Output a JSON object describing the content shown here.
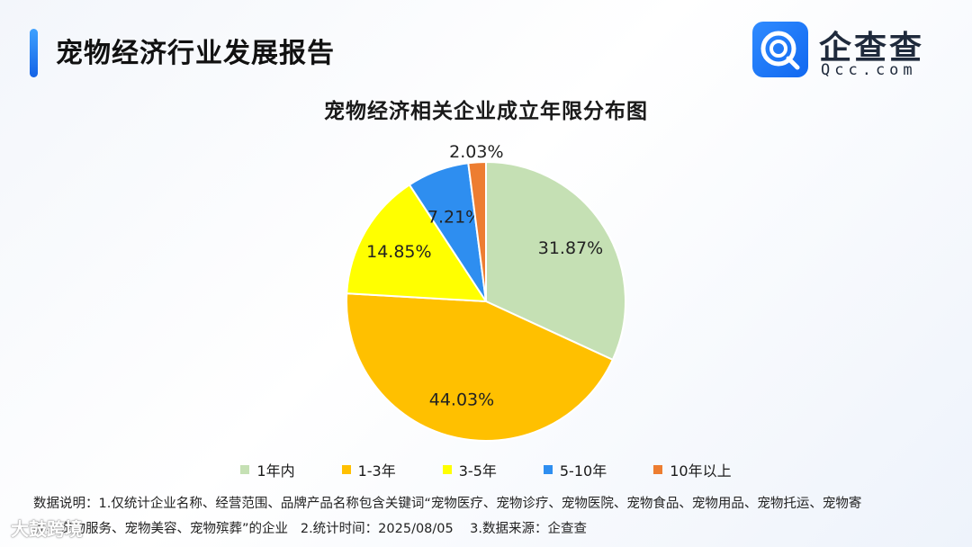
{
  "header": {
    "report_title": "宠物经济行业发展报告",
    "logo_cn": "企查查",
    "logo_en": "Qcc.com",
    "brand_color": "#1a73f0"
  },
  "footer": {
    "note_line1": "数据说明：1.仅统计企业名称、经营范围、品牌产品名称包含关键词“宠物医疗、宠物诊疗、宠物医院、宠物食品、宠物用品、宠物托运、宠物寄",
    "note_line2": "养、宠物服务、宠物美容、宠物殡葬”的企业   2.统计时间：2025/08/05    3.数据来源：企查查",
    "watermark": "大鼓跨境"
  },
  "chart_data": {
    "type": "pie",
    "title": "宠物经济相关企业成立年限分布图",
    "categories": [
      "1年内",
      "1-3年",
      "3-5年",
      "5-10年",
      "10年以上"
    ],
    "values": [
      31.87,
      44.03,
      14.85,
      7.21,
      2.03
    ],
    "labels": [
      "31.87%",
      "44.03%",
      "14.85%",
      "7.21%",
      "2.03%"
    ],
    "colors": [
      "#c5e0b4",
      "#ffc000",
      "#ffff00",
      "#2e8ef0",
      "#ed7d31"
    ],
    "start_angle_deg": 0,
    "direction": "clockwise",
    "legend_position": "bottom"
  }
}
